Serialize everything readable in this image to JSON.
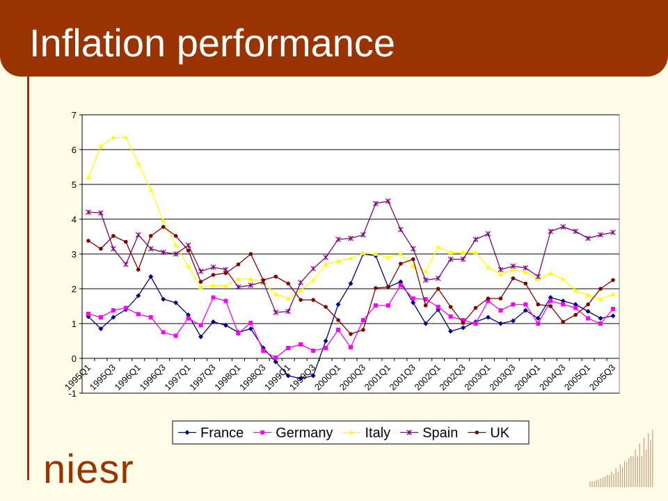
{
  "title": "Inflation performance",
  "logo": "niesr",
  "chart_data": {
    "type": "line",
    "categories": [
      "1995Q1",
      null,
      "1995Q3",
      null,
      "1996Q1",
      null,
      "1996Q3",
      null,
      "1997Q1",
      null,
      "1997Q3",
      null,
      "1998Q1",
      null,
      "1998Q3",
      null,
      "1999Q1",
      null,
      "1999Q3",
      null,
      "2000Q1",
      null,
      "2000Q3",
      null,
      "2001Q1",
      null,
      "2001Q3",
      null,
      "2002Q1",
      null,
      "2002Q3",
      null,
      "2003Q1",
      null,
      "2003Q3",
      null,
      "2004Q1",
      null,
      "2004Q3",
      null,
      "2005Q1",
      null,
      "2005Q3"
    ],
    "series": [
      {
        "name": "France",
        "color": "#000080",
        "marker": "diamond",
        "values": [
          1.2,
          0.85,
          1.18,
          1.4,
          1.8,
          2.35,
          1.7,
          1.6,
          1.25,
          0.62,
          1.05,
          0.95,
          0.75,
          0.85,
          0.3,
          -0.1,
          -0.5,
          -0.58,
          -0.5,
          0.5,
          1.55,
          2.15,
          3.0,
          2.95,
          2.05,
          2.2,
          1.6,
          1.0,
          1.4,
          0.78,
          0.88,
          1.05,
          1.18,
          1.0,
          1.08,
          1.38,
          1.15,
          1.75,
          1.65,
          1.55,
          1.35,
          1.15,
          1.22
        ]
      },
      {
        "name": "Germany",
        "color": "#ff00ff",
        "marker": "square",
        "values": [
          1.28,
          1.18,
          1.38,
          1.45,
          1.27,
          1.18,
          0.75,
          0.65,
          1.15,
          0.95,
          1.75,
          1.65,
          0.72,
          1.02,
          0.22,
          0.02,
          0.3,
          0.4,
          0.22,
          0.3,
          0.82,
          0.32,
          1.1,
          1.52,
          1.52,
          2.1,
          1.72,
          1.7,
          1.48,
          1.2,
          1.1,
          1.0,
          1.65,
          1.38,
          1.55,
          1.55,
          1.0,
          1.65,
          1.55,
          1.45,
          1.15,
          1.0,
          1.42
        ]
      },
      {
        "name": "Italy",
        "color": "#ffff00",
        "marker": "triangle",
        "values": [
          5.2,
          6.1,
          6.35,
          6.35,
          5.6,
          4.85,
          3.95,
          3.25,
          2.65,
          2.05,
          2.1,
          2.08,
          2.28,
          2.28,
          2.18,
          1.85,
          1.72,
          1.95,
          2.25,
          2.7,
          2.8,
          2.88,
          3.02,
          3.0,
          2.9,
          3.0,
          2.65,
          2.5,
          3.2,
          3.05,
          3.05,
          3.05,
          2.62,
          2.42,
          2.55,
          2.48,
          2.28,
          2.45,
          2.28,
          1.95,
          1.82,
          1.7,
          1.85
        ]
      },
      {
        "name": "Spain",
        "color": "#800080",
        "marker": "star",
        "values": [
          4.2,
          4.18,
          3.15,
          2.7,
          3.55,
          3.15,
          3.05,
          3.0,
          3.25,
          2.5,
          2.62,
          2.55,
          2.05,
          2.1,
          2.2,
          1.32,
          1.35,
          2.18,
          2.58,
          2.9,
          3.42,
          3.45,
          3.55,
          4.45,
          4.52,
          3.7,
          3.15,
          2.25,
          2.3,
          2.85,
          2.85,
          3.42,
          3.58,
          2.55,
          2.65,
          2.6,
          2.35,
          3.65,
          3.78,
          3.65,
          3.45,
          3.55,
          3.62
        ]
      },
      {
        "name": "UK",
        "color": "#800000",
        "marker": "circle",
        "values": [
          3.38,
          3.15,
          3.52,
          3.35,
          2.55,
          3.52,
          3.78,
          3.52,
          3.1,
          2.2,
          2.4,
          2.45,
          2.7,
          3.0,
          2.25,
          2.35,
          2.15,
          1.68,
          1.68,
          1.48,
          1.1,
          0.7,
          0.82,
          2.02,
          2.05,
          2.72,
          2.85,
          1.52,
          2.0,
          1.48,
          1.02,
          1.45,
          1.72,
          1.72,
          2.3,
          2.15,
          1.55,
          1.5,
          1.05,
          1.25,
          1.55,
          2.0,
          2.25
        ]
      }
    ],
    "ylim": [
      -1,
      7
    ],
    "yticks": [
      -1,
      0,
      1,
      2,
      3,
      4,
      5,
      6,
      7
    ],
    "grid": true,
    "legend": "bottom"
  }
}
